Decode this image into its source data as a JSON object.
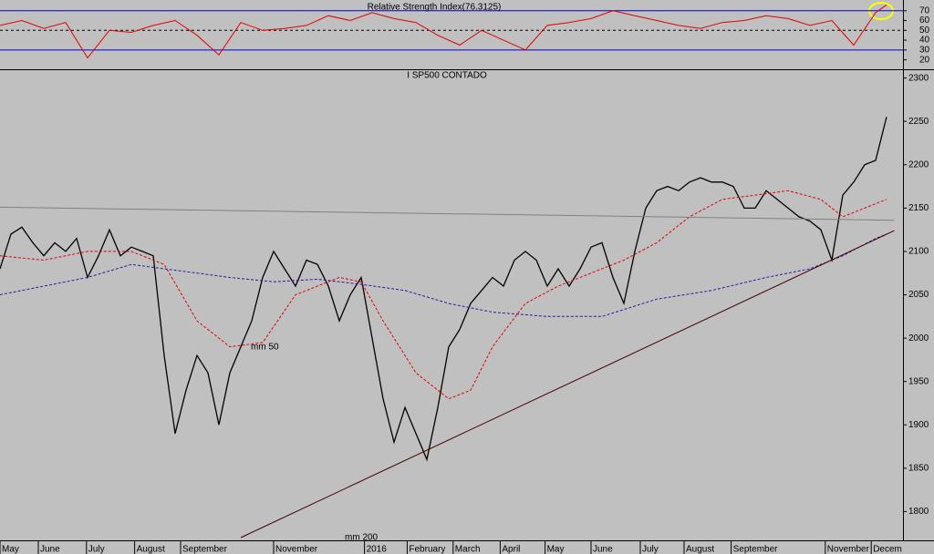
{
  "chart_data": [
    {
      "type": "line",
      "title": "Relative Strength Index(76.3125)",
      "ylim": [
        15,
        80
      ],
      "yticks": [
        20,
        30,
        40,
        50,
        60,
        70
      ],
      "levels": [
        {
          "value": 70,
          "color": "#0000cc"
        },
        {
          "value": 50,
          "color": "#000000"
        },
        {
          "value": 30,
          "color": "#0000cc"
        }
      ],
      "xlim": [
        0,
        82.5
      ],
      "series": [
        {
          "color": "#e00000",
          "x": [
            0,
            2,
            4,
            6,
            8,
            10,
            12,
            14,
            16,
            18,
            20,
            22,
            24,
            26,
            28,
            30,
            32,
            34,
            36,
            38,
            40,
            42,
            44,
            46,
            48,
            50,
            52,
            54,
            56,
            58,
            60,
            62,
            64,
            66,
            68,
            70,
            72,
            74,
            76,
            78,
            80,
            81
          ],
          "values": [
            55,
            60,
            52,
            58,
            22,
            50,
            48,
            55,
            60,
            45,
            25,
            58,
            50,
            52,
            55,
            65,
            60,
            68,
            62,
            58,
            45,
            35,
            50,
            40,
            30,
            55,
            58,
            62,
            70,
            65,
            60,
            55,
            52,
            58,
            60,
            65,
            62,
            55,
            60,
            35,
            68,
            76
          ]
        }
      ]
    },
    {
      "type": "line",
      "title": "I SP500 CONTADO",
      "ylim": [
        1770,
        2308
      ],
      "yticks": [
        1800,
        1850,
        1900,
        1950,
        2000,
        2050,
        2100,
        2150,
        2200,
        2250,
        2300
      ],
      "xlim": [
        0,
        82.5
      ],
      "xticks": [
        {
          "value": 0,
          "label": "May"
        },
        {
          "value": 3.5,
          "label": "June"
        },
        {
          "value": 7.9,
          "label": "July"
        },
        {
          "value": 12.3,
          "label": "August"
        },
        {
          "value": 16.5,
          "label": "September"
        },
        {
          "value": 25,
          "label": "November"
        },
        {
          "value": 33.3,
          "label": "2016"
        },
        {
          "value": 37.2,
          "label": "February"
        },
        {
          "value": 41.4,
          "label": "March"
        },
        {
          "value": 45.7,
          "label": "April"
        },
        {
          "value": 49.8,
          "label": "May"
        },
        {
          "value": 54,
          "label": "June"
        },
        {
          "value": 58.5,
          "label": "July"
        },
        {
          "value": 62.5,
          "label": "August"
        },
        {
          "value": 66.8,
          "label": "September"
        },
        {
          "value": 75.4,
          "label": "November"
        },
        {
          "value": 79.6,
          "label": "Decem"
        }
      ],
      "annotations": [
        "mm 50",
        "mm 200"
      ],
      "series": [
        {
          "color": "#000000",
          "x": [
            0,
            1,
            2,
            3,
            4,
            5,
            6,
            7,
            8,
            9,
            10,
            11,
            12,
            13,
            14,
            15,
            16,
            17,
            18,
            19,
            20,
            21,
            22,
            23,
            24,
            25,
            26,
            27,
            28,
            29,
            30,
            31,
            32,
            33,
            34,
            35,
            36,
            37,
            38,
            39,
            40,
            41,
            42,
            43,
            44,
            45,
            46,
            47,
            48,
            49,
            50,
            51,
            52,
            53,
            54,
            55,
            56,
            57,
            58,
            59,
            60,
            61,
            62,
            63,
            64,
            65,
            66,
            67,
            68,
            69,
            70,
            71,
            72,
            73,
            74,
            75,
            76,
            77,
            78,
            79,
            80,
            81
          ],
          "values": [
            2080,
            2120,
            2128,
            2110,
            2095,
            2110,
            2100,
            2115,
            2070,
            2095,
            2125,
            2095,
            2105,
            2100,
            2095,
            1980,
            1890,
            1940,
            1980,
            1960,
            1900,
            1960,
            1990,
            2020,
            2070,
            2100,
            2080,
            2060,
            2090,
            2085,
            2060,
            2020,
            2050,
            2070,
            2000,
            1930,
            1880,
            1920,
            1890,
            1860,
            1920,
            1990,
            2010,
            2040,
            2055,
            2070,
            2060,
            2090,
            2100,
            2090,
            2060,
            2080,
            2060,
            2080,
            2105,
            2110,
            2070,
            2040,
            2100,
            2150,
            2170,
            2175,
            2170,
            2180,
            2185,
            2180,
            2180,
            2175,
            2150,
            2150,
            2170,
            2160,
            2150,
            2140,
            2135,
            2125,
            2090,
            2165,
            2180,
            2200,
            2205,
            2255
          ]
        },
        {
          "color": "#e00000",
          "dashed": true,
          "x": [
            0,
            4,
            8,
            12,
            15,
            18,
            21,
            24,
            27,
            29,
            31,
            33,
            35,
            38,
            41,
            43,
            45,
            48,
            51,
            54,
            57,
            60,
            63,
            66,
            69,
            72,
            75,
            77,
            80,
            81
          ],
          "values": [
            2095,
            2090,
            2100,
            2100,
            2085,
            2020,
            1990,
            1995,
            2050,
            2060,
            2070,
            2065,
            2020,
            1960,
            1930,
            1940,
            1990,
            2040,
            2060,
            2075,
            2090,
            2110,
            2140,
            2160,
            2165,
            2170,
            2160,
            2140,
            2155,
            2160
          ]
        },
        {
          "color": "#2a1aa0",
          "dashed": true,
          "x": [
            0,
            4,
            8,
            12,
            15,
            18,
            21,
            25,
            29,
            33,
            37,
            41,
            45,
            50,
            55,
            60,
            65,
            70,
            74,
            77,
            80,
            81
          ],
          "values": [
            2050,
            2060,
            2070,
            2085,
            2080,
            2075,
            2070,
            2065,
            2068,
            2062,
            2055,
            2040,
            2030,
            2025,
            2025,
            2045,
            2055,
            2070,
            2080,
            2095,
            2115,
            2120
          ]
        },
        {
          "color": "#808080",
          "x": [
            0,
            81.7
          ],
          "values": [
            2151,
            2136
          ]
        },
        {
          "color": "#400000",
          "x": [
            22,
            81.7
          ],
          "values": [
            1770,
            2124
          ]
        }
      ]
    }
  ]
}
